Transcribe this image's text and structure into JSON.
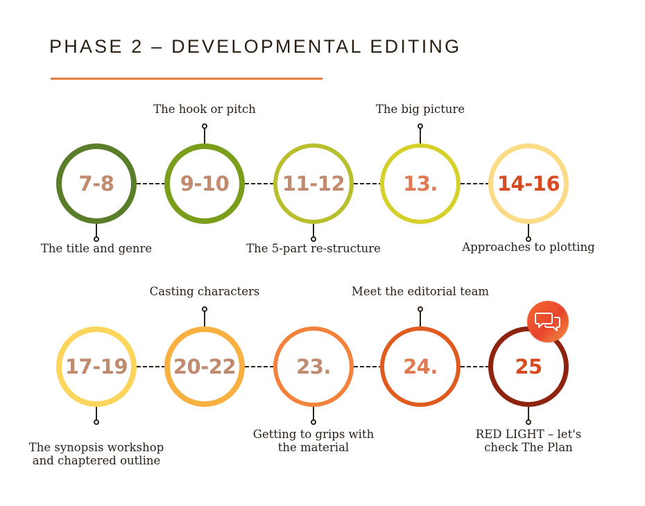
{
  "header": {
    "title": "PHASE 2 – DEVELOPMENTAL EDITING"
  },
  "rows": [
    {
      "steps": [
        {
          "number": "7-8",
          "label": "The title and genre",
          "label_position": "below",
          "ring_color": "#5a7d2a",
          "number_color": "#c08a6e"
        },
        {
          "number": "9-10",
          "label": "The hook or pitch",
          "label_position": "above",
          "ring_color": "#7a9e1c",
          "number_color": "#c08a6e"
        },
        {
          "number": "11-12",
          "label": "The 5-part re-structure",
          "label_position": "below",
          "ring_color": "#b7bf2d",
          "number_color": "#c08a6e"
        },
        {
          "number": "13.",
          "label": "The big picture",
          "label_position": "above",
          "ring_color": "#d5d02a",
          "number_color": "#e07a52"
        },
        {
          "number": "14-16",
          "label": "Approaches to plotting",
          "label_position": "below",
          "ring_color": "#fbdb85",
          "number_color": "#d84b20"
        }
      ]
    },
    {
      "steps": [
        {
          "number": "17-19",
          "label": "The synopsis workshop\nand chaptered outline",
          "label_position": "below",
          "ring_color": "#fcd55d",
          "number_color": "#c08a6e"
        },
        {
          "number": "20-22",
          "label": "Casting characters",
          "label_position": "above",
          "ring_color": "#f8b140",
          "number_color": "#c08a6e"
        },
        {
          "number": "23.",
          "label": "Getting to grips with\nthe material",
          "label_position": "below",
          "ring_color": "#f3823d",
          "number_color": "#c08a6e"
        },
        {
          "number": "24.",
          "label": "Meet the editorial team",
          "label_position": "above",
          "ring_color": "#df5b1e",
          "number_color": "#e07a52"
        },
        {
          "number": "25",
          "label": "RED LIGHT – let's\ncheck The Plan",
          "label_position": "below",
          "ring_color": "#8e2410",
          "number_color": "#d84b20"
        }
      ]
    }
  ],
  "badge": {
    "icon": "chat-bubbles-icon",
    "color": "#f46a2f"
  }
}
